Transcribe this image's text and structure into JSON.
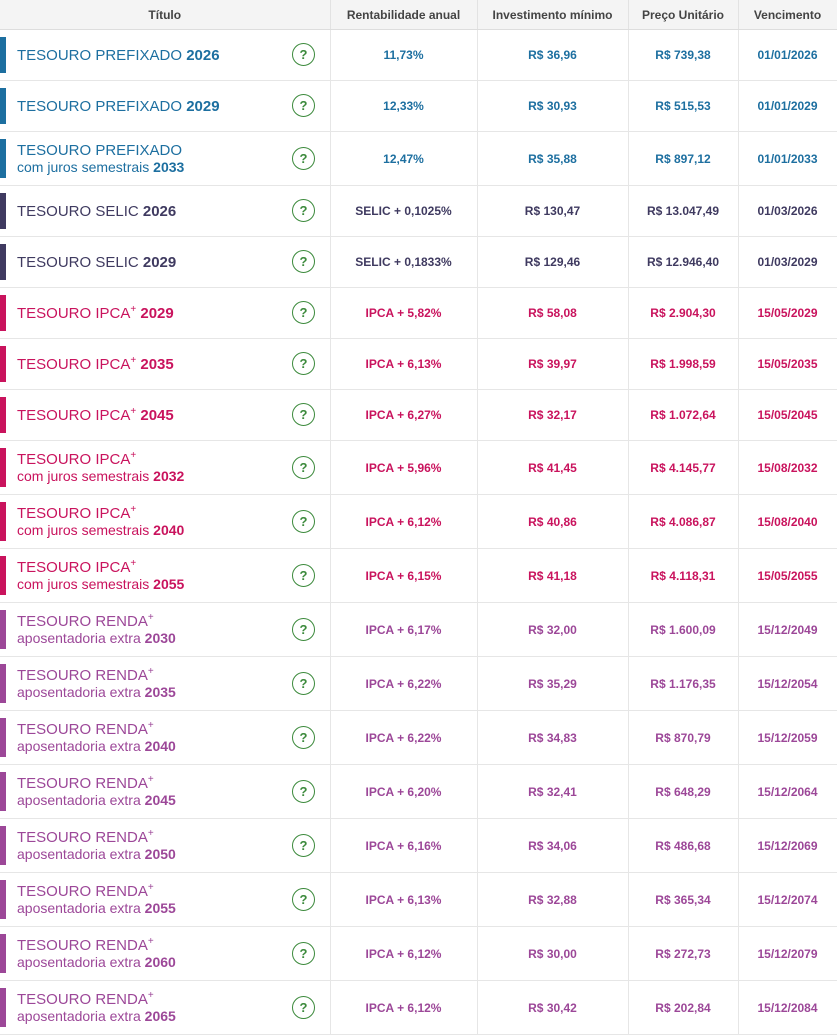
{
  "headers": {
    "titulo": "Título",
    "rentabilidade": "Rentabilidade anual",
    "investimento": "Investimento mínimo",
    "preco": "Preço Unitário",
    "vencimento": "Vencimento"
  },
  "help_glyph": "?",
  "help_icon": "question-circle-icon",
  "colors": {
    "prefixado": "#1d6fa0",
    "selic": "#3f3a60",
    "ipca": "#c9135d",
    "renda": "#9c4798",
    "help": "#3c8a3c",
    "separator": "#333333"
  },
  "bonds": [
    {
      "family": "prefixado",
      "name": "TESOURO PREFIXADO",
      "sup": "",
      "sub": "",
      "year": "2026",
      "rate_prefix": "",
      "rate": "11,73%",
      "min_investment": "R$ 36,96",
      "unit_price": "R$ 739,38",
      "maturity": "01/01/2026"
    },
    {
      "family": "prefixado",
      "name": "TESOURO PREFIXADO",
      "sup": "",
      "sub": "",
      "year": "2029",
      "rate_prefix": "",
      "rate": "12,33%",
      "min_investment": "R$ 30,93",
      "unit_price": "R$ 515,53",
      "maturity": "01/01/2029"
    },
    {
      "family": "prefixado",
      "name": "TESOURO PREFIXADO",
      "sup": "",
      "sub": "com juros semestrais",
      "year": "2033",
      "rate_prefix": "",
      "rate": "12,47%",
      "min_investment": "R$ 35,88",
      "unit_price": "R$ 897,12",
      "maturity": "01/01/2033"
    },
    {
      "family": "selic",
      "name": "TESOURO SELIC",
      "sup": "",
      "sub": "",
      "year": "2026",
      "rate_prefix": "SELIC",
      "rate": "+ 0,1025%",
      "min_investment": "R$ 130,47",
      "unit_price": "R$ 13.047,49",
      "maturity": "01/03/2026"
    },
    {
      "family": "selic",
      "name": "TESOURO SELIC",
      "sup": "",
      "sub": "",
      "year": "2029",
      "rate_prefix": "SELIC",
      "rate": "+ 0,1833%",
      "min_investment": "R$ 129,46",
      "unit_price": "R$ 12.946,40",
      "maturity": "01/03/2029"
    },
    {
      "family": "ipca",
      "name": "TESOURO IPCA",
      "sup": "+",
      "sub": "",
      "year": "2029",
      "rate_prefix": "IPCA",
      "rate": "+ 5,82%",
      "min_investment": "R$ 58,08",
      "unit_price": "R$ 2.904,30",
      "maturity": "15/05/2029"
    },
    {
      "family": "ipca",
      "name": "TESOURO IPCA",
      "sup": "+",
      "sub": "",
      "year": "2035",
      "rate_prefix": "IPCA",
      "rate": "+ 6,13%",
      "min_investment": "R$ 39,97",
      "unit_price": "R$ 1.998,59",
      "maturity": "15/05/2035"
    },
    {
      "family": "ipca",
      "name": "TESOURO IPCA",
      "sup": "+",
      "sub": "",
      "year": "2045",
      "rate_prefix": "IPCA",
      "rate": "+ 6,27%",
      "min_investment": "R$ 32,17",
      "unit_price": "R$ 1.072,64",
      "maturity": "15/05/2045"
    },
    {
      "family": "ipca",
      "name": "TESOURO IPCA",
      "sup": "+",
      "sub": "com juros semestrais",
      "year": "2032",
      "rate_prefix": "IPCA",
      "rate": "+ 5,96%",
      "min_investment": "R$ 41,45",
      "unit_price": "R$ 4.145,77",
      "maturity": "15/08/2032"
    },
    {
      "family": "ipca",
      "name": "TESOURO IPCA",
      "sup": "+",
      "sub": "com juros semestrais",
      "year": "2040",
      "rate_prefix": "IPCA",
      "rate": "+ 6,12%",
      "min_investment": "R$ 40,86",
      "unit_price": "R$ 4.086,87",
      "maturity": "15/08/2040"
    },
    {
      "family": "ipca",
      "name": "TESOURO IPCA",
      "sup": "+",
      "sub": "com juros semestrais",
      "year": "2055",
      "rate_prefix": "IPCA",
      "rate": "+ 6,15%",
      "min_investment": "R$ 41,18",
      "unit_price": "R$ 4.118,31",
      "maturity": "15/05/2055"
    },
    {
      "family": "renda",
      "name": "TESOURO RENDA",
      "sup": "+",
      "sub": "aposentadoria extra",
      "year": "2030",
      "rate_prefix": "IPCA",
      "rate": "+ 6,17%",
      "min_investment": "R$ 32,00",
      "unit_price": "R$ 1.600,09",
      "maturity": "15/12/2049"
    },
    {
      "family": "renda",
      "name": "TESOURO RENDA",
      "sup": "+",
      "sub": "aposentadoria extra",
      "year": "2035",
      "rate_prefix": "IPCA",
      "rate": "+ 6,22%",
      "min_investment": "R$ 35,29",
      "unit_price": "R$ 1.176,35",
      "maturity": "15/12/2054"
    },
    {
      "family": "renda",
      "name": "TESOURO RENDA",
      "sup": "+",
      "sub": "aposentadoria extra",
      "year": "2040",
      "rate_prefix": "IPCA",
      "rate": "+ 6,22%",
      "min_investment": "R$ 34,83",
      "unit_price": "R$ 870,79",
      "maturity": "15/12/2059"
    },
    {
      "family": "renda",
      "name": "TESOURO RENDA",
      "sup": "+",
      "sub": "aposentadoria extra",
      "year": "2045",
      "rate_prefix": "IPCA",
      "rate": "+ 6,20%",
      "min_investment": "R$ 32,41",
      "unit_price": "R$ 648,29",
      "maturity": "15/12/2064"
    },
    {
      "family": "renda",
      "name": "TESOURO RENDA",
      "sup": "+",
      "sub": "aposentadoria extra",
      "year": "2050",
      "rate_prefix": "IPCA",
      "rate": "+ 6,16%",
      "min_investment": "R$ 34,06",
      "unit_price": "R$ 486,68",
      "maturity": "15/12/2069"
    },
    {
      "family": "renda",
      "name": "TESOURO RENDA",
      "sup": "+",
      "sub": "aposentadoria extra",
      "year": "2055",
      "rate_prefix": "IPCA",
      "rate": "+ 6,13%",
      "min_investment": "R$ 32,88",
      "unit_price": "R$ 365,34",
      "maturity": "15/12/2074"
    },
    {
      "family": "renda",
      "name": "TESOURO RENDA",
      "sup": "+",
      "sub": "aposentadoria extra",
      "year": "2060",
      "rate_prefix": "IPCA",
      "rate": "+ 6,12%",
      "min_investment": "R$ 30,00",
      "unit_price": "R$ 272,73",
      "maturity": "15/12/2079"
    },
    {
      "family": "renda",
      "name": "TESOURO RENDA",
      "sup": "+",
      "sub": "aposentadoria extra",
      "year": "2065",
      "rate_prefix": "IPCA",
      "rate": "+ 6,12%",
      "min_investment": "R$ 30,42",
      "unit_price": "R$ 202,84",
      "maturity": "15/12/2084"
    }
  ]
}
